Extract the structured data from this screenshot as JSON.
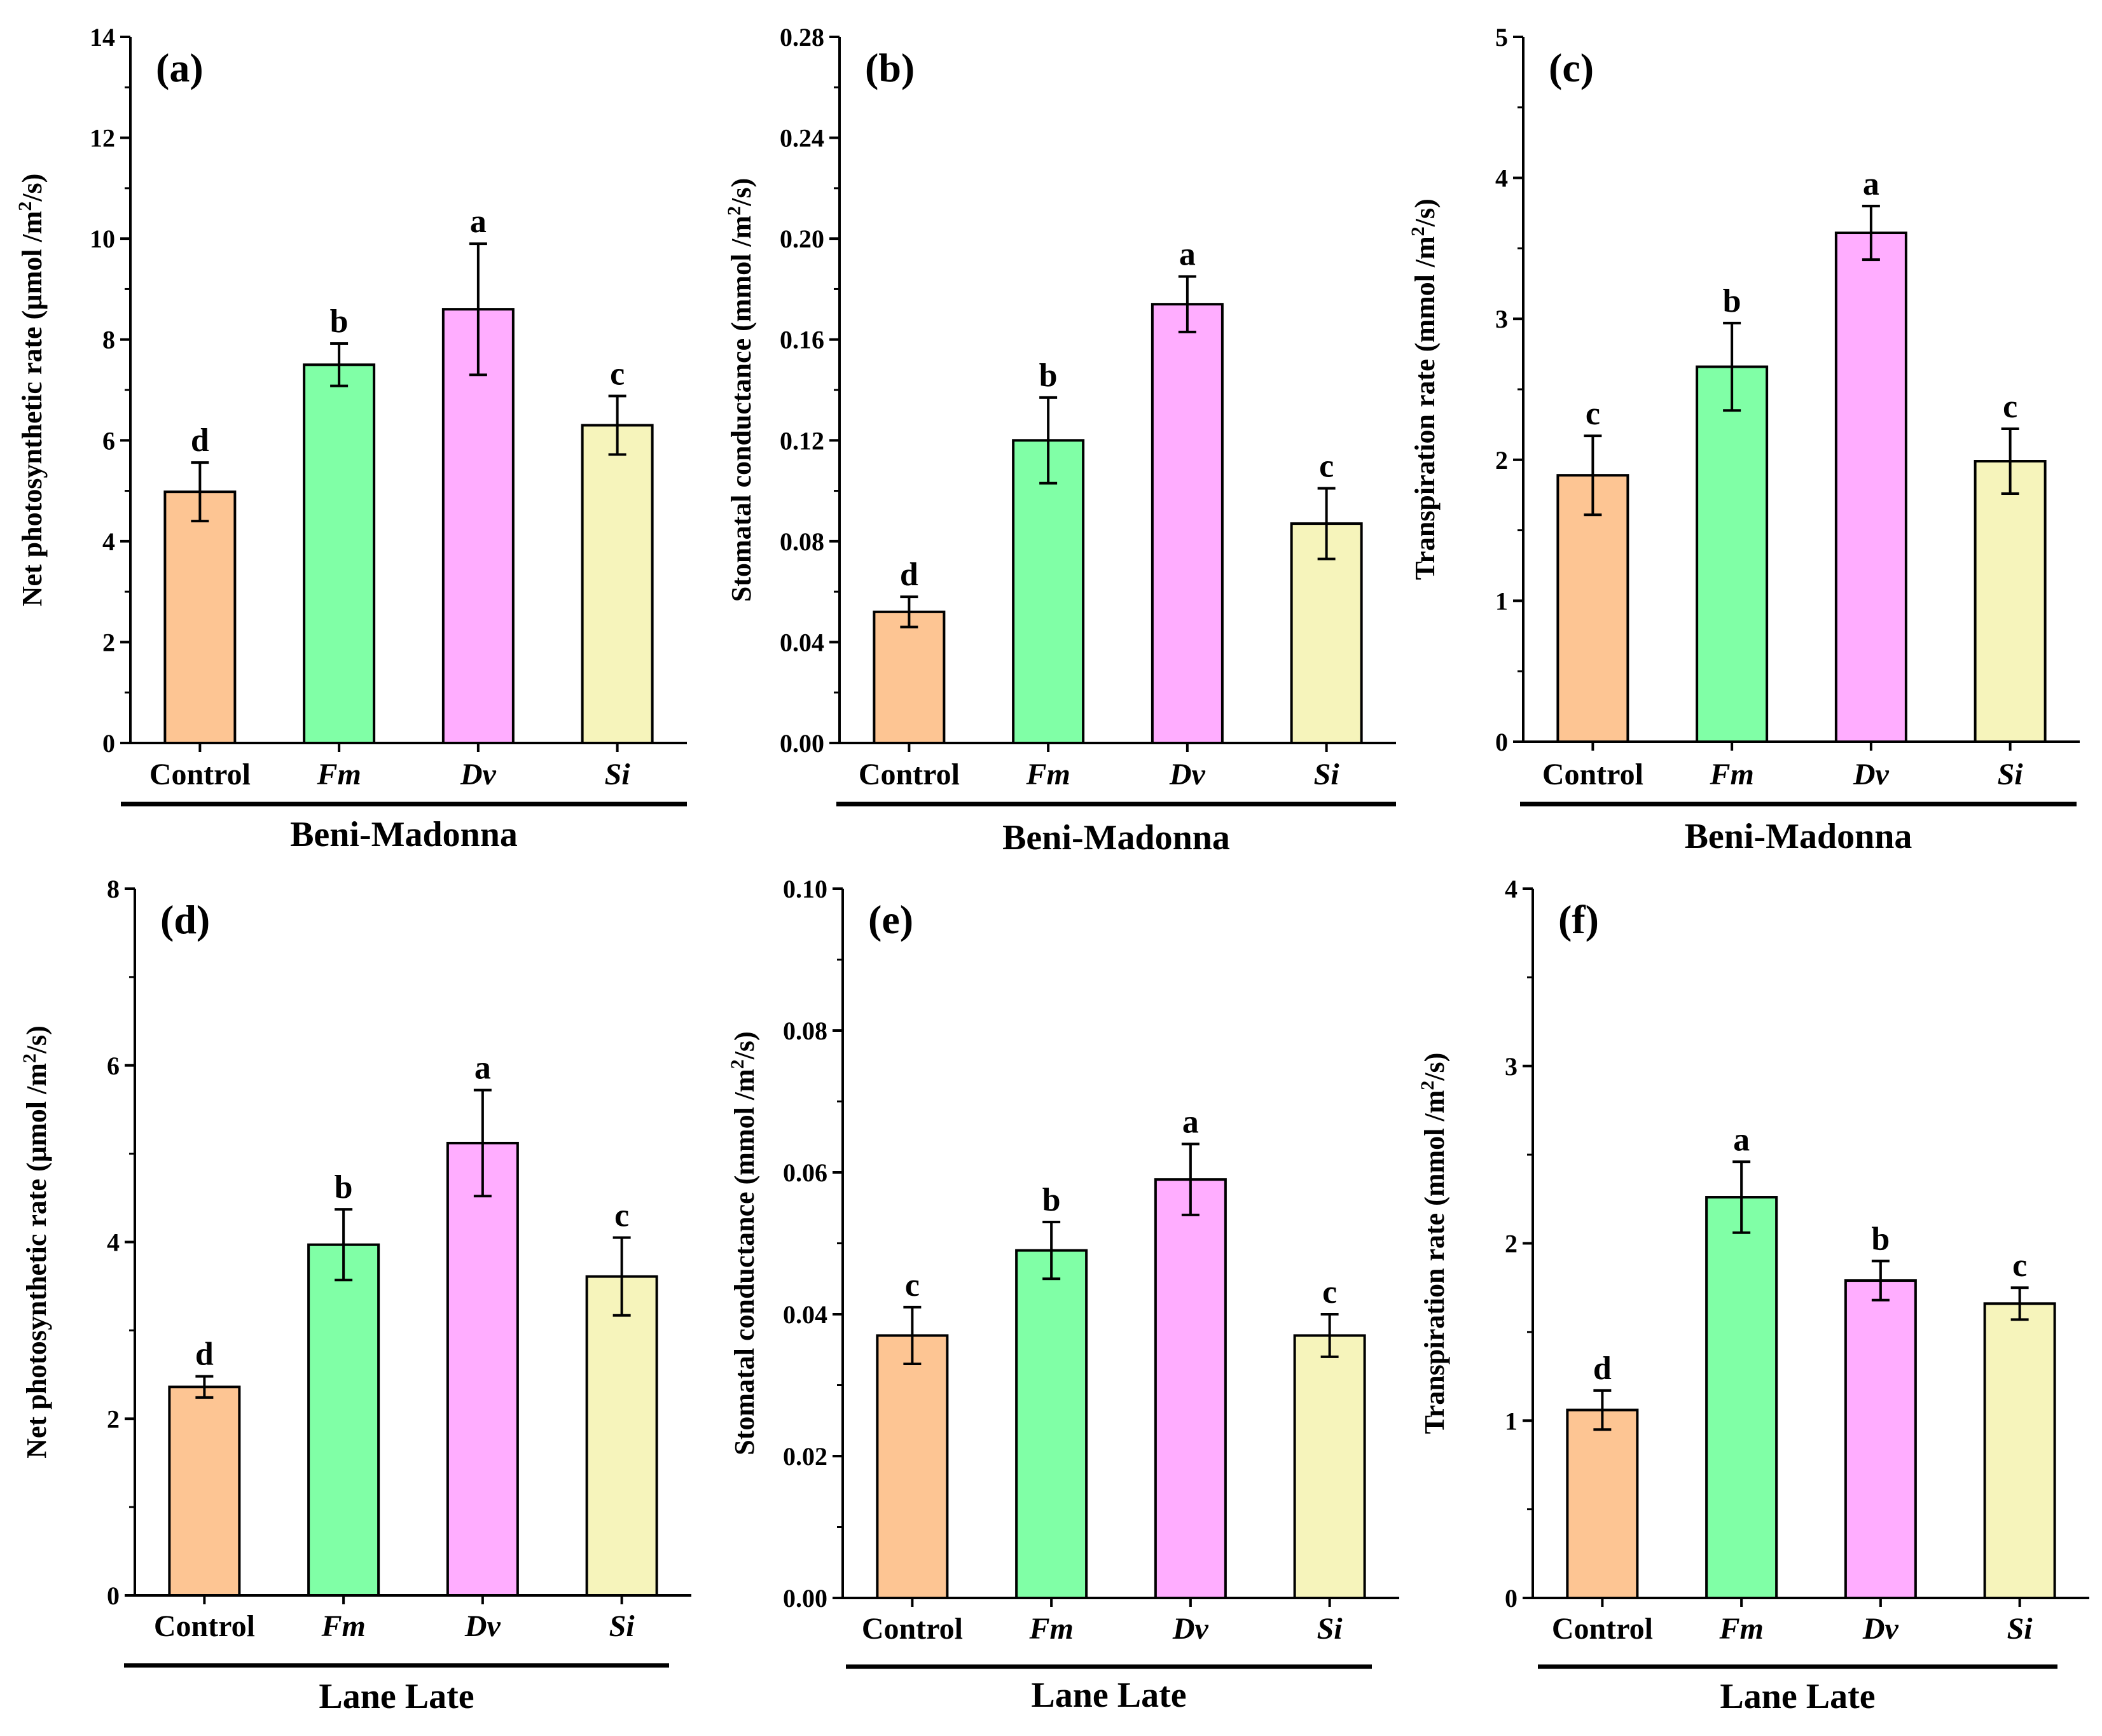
{
  "colors": {
    "control": "#FDC593",
    "fm": "#80FFA6",
    "dv": "#FFADFF",
    "si": "#F6F4BB",
    "axis": "#000000"
  },
  "chart_data": [
    {
      "type": "bar",
      "panel": "(a)",
      "cultivar": "Beni-Madonna",
      "ylabel_main": "Net photosynthetic rate (µmol /m",
      "ylabel_sup": "2",
      "ylabel_end": "/s)",
      "ylim": [
        0,
        14
      ],
      "yticks": [
        "0",
        "2",
        "4",
        "6",
        "8",
        "10",
        "12",
        "14"
      ],
      "categories": [
        "Control",
        "Fm",
        "Dv",
        "Si"
      ],
      "values": [
        4.98,
        7.5,
        8.6,
        6.3
      ],
      "errors": [
        0.58,
        0.42,
        1.3,
        0.58
      ],
      "letters": [
        "d",
        "b",
        "a",
        "c"
      ]
    },
    {
      "type": "bar",
      "panel": "(b)",
      "cultivar": "Beni-Madonna",
      "ylabel_main": "Stomatal conductance (mmol /m",
      "ylabel_sup": "2",
      "ylabel_end": "/s)",
      "ylim": [
        0,
        0.28
      ],
      "yticks": [
        "0.00",
        "0.04",
        "0.08",
        "0.12",
        "0.16",
        "0.20",
        "0.24",
        "0.28"
      ],
      "categories": [
        "Control",
        "Fm",
        "Dv",
        "Si"
      ],
      "values": [
        0.052,
        0.12,
        0.174,
        0.087
      ],
      "errors": [
        0.006,
        0.017,
        0.011,
        0.014
      ],
      "letters": [
        "d",
        "b",
        "a",
        "c"
      ]
    },
    {
      "type": "bar",
      "panel": "(c)",
      "cultivar": "Beni-Madonna",
      "ylabel_main": "Transpiration rate (mmol /m",
      "ylabel_sup": "2",
      "ylabel_end": "/s)",
      "ylim": [
        0,
        5
      ],
      "yticks": [
        "0",
        "1",
        "2",
        "3",
        "4",
        "5"
      ],
      "categories": [
        "Control",
        "Fm",
        "Dv",
        "Si"
      ],
      "values": [
        1.89,
        2.66,
        3.61,
        1.99
      ],
      "errors": [
        0.28,
        0.31,
        0.19,
        0.23
      ],
      "letters": [
        "c",
        "b",
        "a",
        "c"
      ]
    },
    {
      "type": "bar",
      "panel": "(d)",
      "cultivar": "Lane Late",
      "ylabel_main": "Net photosynthetic rate (µmol /m",
      "ylabel_sup": "2",
      "ylabel_end": "/s)",
      "ylim": [
        0,
        8
      ],
      "yticks": [
        "0",
        "2",
        "4",
        "6",
        "8"
      ],
      "categories": [
        "Control",
        "Fm",
        "Dv",
        "Si"
      ],
      "values": [
        2.36,
        3.97,
        5.12,
        3.61
      ],
      "errors": [
        0.12,
        0.4,
        0.6,
        0.44
      ],
      "letters": [
        "d",
        "b",
        "a",
        "c"
      ]
    },
    {
      "type": "bar",
      "panel": "(e)",
      "cultivar": "Lane Late",
      "ylabel_main": "Stomatal conductance  (mmol /m",
      "ylabel_sup": "2",
      "ylabel_end": "/s)",
      "ylim": [
        0,
        0.1
      ],
      "yticks": [
        "0.00",
        "0.02",
        "0.04",
        "0.06",
        "0.08",
        "0.10"
      ],
      "categories": [
        "Control",
        "Fm",
        "Dv",
        "Si"
      ],
      "values": [
        0.037,
        0.049,
        0.059,
        0.037
      ],
      "errors": [
        0.004,
        0.004,
        0.005,
        0.003
      ],
      "letters": [
        "c",
        "b",
        "a",
        "c"
      ]
    },
    {
      "type": "bar",
      "panel": "(f)",
      "cultivar": "Lane Late",
      "ylabel_main": "Transpiration rate (mmol /m",
      "ylabel_sup": "2",
      "ylabel_end": "/s)",
      "ylim": [
        0,
        4
      ],
      "yticks": [
        "0",
        "1",
        "2",
        "3",
        "4"
      ],
      "categories": [
        "Control",
        "Fm",
        "Dv",
        "Si"
      ],
      "values": [
        1.06,
        2.26,
        1.79,
        1.66
      ],
      "errors": [
        0.11,
        0.2,
        0.11,
        0.09
      ],
      "letters": [
        "d",
        "a",
        "b",
        "c"
      ]
    }
  ]
}
